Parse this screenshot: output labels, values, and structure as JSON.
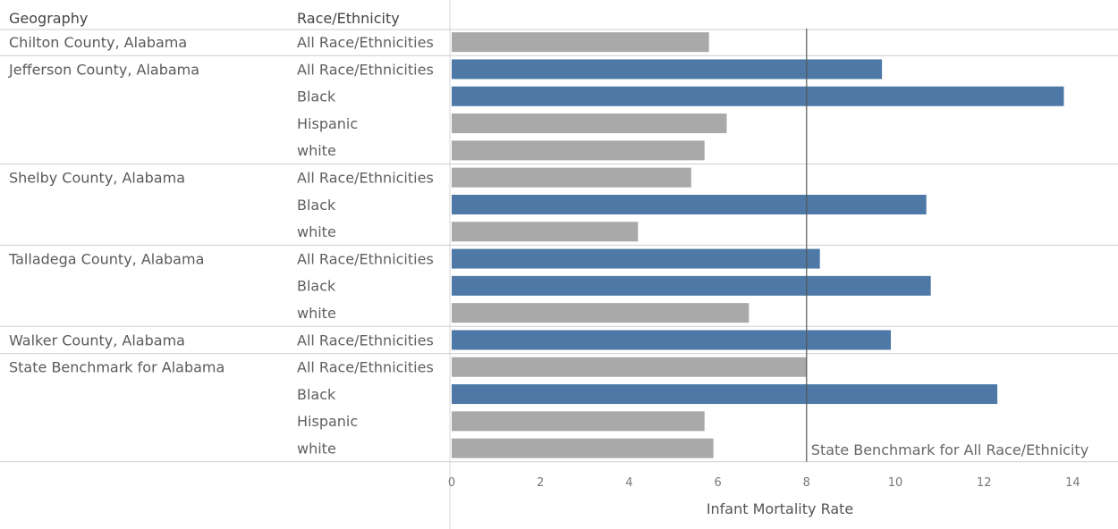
{
  "chart_data": {
    "type": "bar",
    "orientation": "horizontal",
    "headers": {
      "geography": "Geography",
      "race": "Race/Ethnicity"
    },
    "xlabel": "Infant Mortality Rate",
    "xlim": [
      0,
      14.6
    ],
    "ticks": [
      0,
      2,
      4,
      6,
      8,
      10,
      12,
      14
    ],
    "reference_line": {
      "value": 8.0,
      "label": "State Benchmark for All Race/Ethnicity"
    },
    "colors": {
      "above_benchmark": "#4e79a7",
      "below_benchmark": "#a9a9a9"
    },
    "groups": [
      {
        "geography": "Chilton County, Alabama",
        "rows": [
          {
            "race": "All Race/Ethnicities",
            "value": 5.8
          }
        ]
      },
      {
        "geography": "Jefferson County, Alabama",
        "rows": [
          {
            "race": "All Race/Ethnicities",
            "value": 9.7
          },
          {
            "race": "Black",
            "value": 13.8
          },
          {
            "race": "Hispanic",
            "value": 6.2
          },
          {
            "race": "white",
            "value": 5.7
          }
        ]
      },
      {
        "geography": "Shelby County, Alabama",
        "rows": [
          {
            "race": "All Race/Ethnicities",
            "value": 5.4
          },
          {
            "race": "Black",
            "value": 10.7
          },
          {
            "race": "white",
            "value": 4.2
          }
        ]
      },
      {
        "geography": "Talladega County, Alabama",
        "rows": [
          {
            "race": "All Race/Ethnicities",
            "value": 8.3
          },
          {
            "race": "Black",
            "value": 10.8
          },
          {
            "race": "white",
            "value": 6.7
          }
        ]
      },
      {
        "geography": "Walker County, Alabama",
        "rows": [
          {
            "race": "All Race/Ethnicities",
            "value": 9.9
          }
        ]
      },
      {
        "geography": "State Benchmark for Alabama",
        "rows": [
          {
            "race": "All Race/Ethnicities",
            "value": 8.0
          },
          {
            "race": "Black",
            "value": 12.3
          },
          {
            "race": "Hispanic",
            "value": 5.7
          },
          {
            "race": "white",
            "value": 5.9
          }
        ]
      }
    ]
  }
}
